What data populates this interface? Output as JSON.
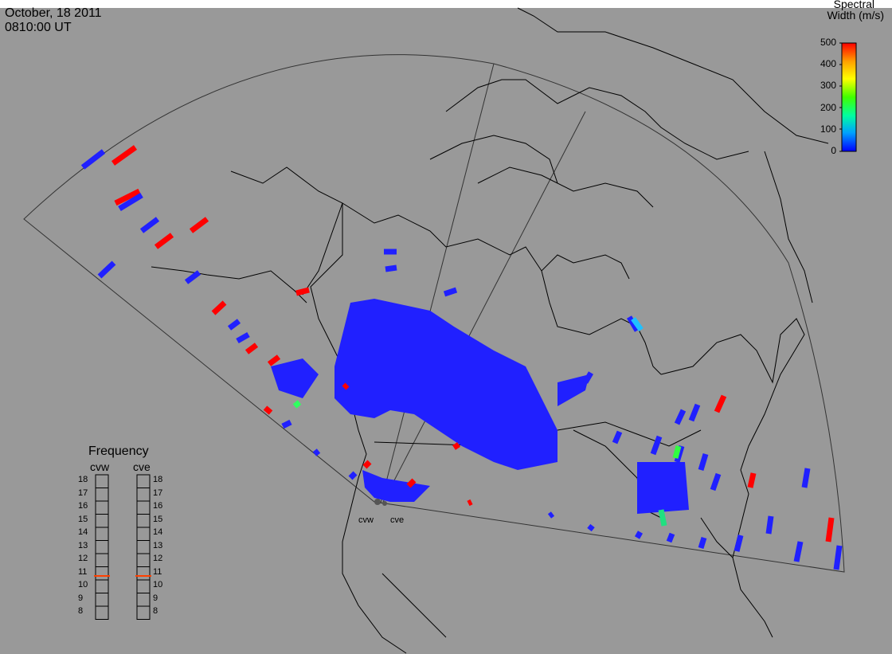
{
  "header": {
    "date": "October, 18 2011",
    "time": "0810:00 UT"
  },
  "colorbar": {
    "title_line1": "Spectral",
    "title_line2": "Width (m/s)",
    "ticks": [
      "0",
      "100",
      "200",
      "300",
      "400",
      "500"
    ],
    "min": 0,
    "max": 500,
    "colors": [
      "#0000ff",
      "#00a0ff",
      "#00ffa0",
      "#40ff00",
      "#ffff00",
      "#ffa000",
      "#ff0000"
    ]
  },
  "radars": {
    "west_label": "cvw",
    "east_label": "cve"
  },
  "frequency": {
    "title": "Frequency",
    "col_west": "cvw",
    "col_east": "cve",
    "scale": [
      "18",
      "17",
      "16",
      "15",
      "14",
      "13",
      "12",
      "11",
      "10",
      "9",
      "8"
    ],
    "cvw_mhz": 10.8,
    "cve_mhz": 10.8,
    "marker_color": "#ff4000"
  },
  "map": {
    "background": "#999999",
    "land_line_color": "#000000",
    "fov_line_color": "#333333",
    "scatter_blue": "#2020ff",
    "scatter_red": "#ff0000"
  }
}
